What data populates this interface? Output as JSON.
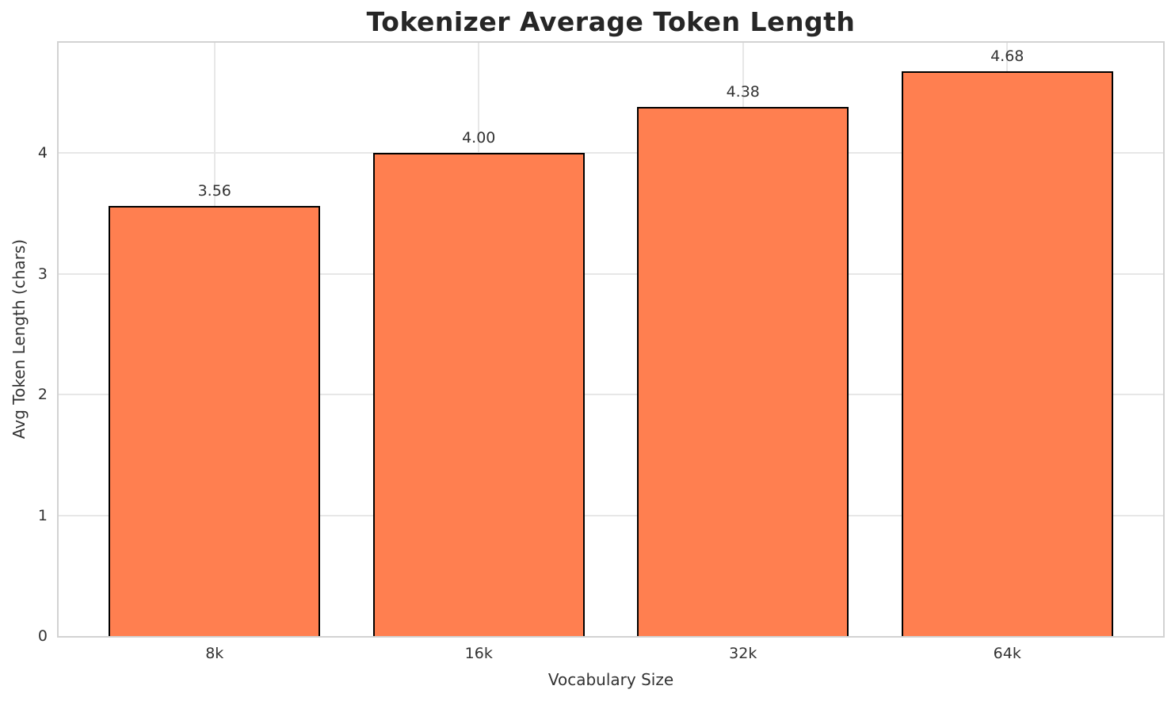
{
  "chart_data": {
    "type": "bar",
    "title": "Tokenizer Average Token Length",
    "xlabel": "Vocabulary Size",
    "ylabel": "Avg Token Length (chars)",
    "categories": [
      "8k",
      "16k",
      "32k",
      "64k"
    ],
    "values": [
      3.56,
      4.0,
      4.38,
      4.68
    ],
    "value_labels": [
      "3.56",
      "4.00",
      "4.38",
      "4.68"
    ],
    "yticks": [
      0,
      1,
      2,
      3,
      4
    ],
    "ylim": [
      0,
      4.91
    ],
    "grid": "on",
    "legend": "none",
    "bar_color": "#ff7f50",
    "bar_edge_color": "#000000",
    "grid_color": "#e7e7e7",
    "spine_color": "#d2d2d2",
    "text_color": "#333333",
    "title_color": "#262626"
  }
}
